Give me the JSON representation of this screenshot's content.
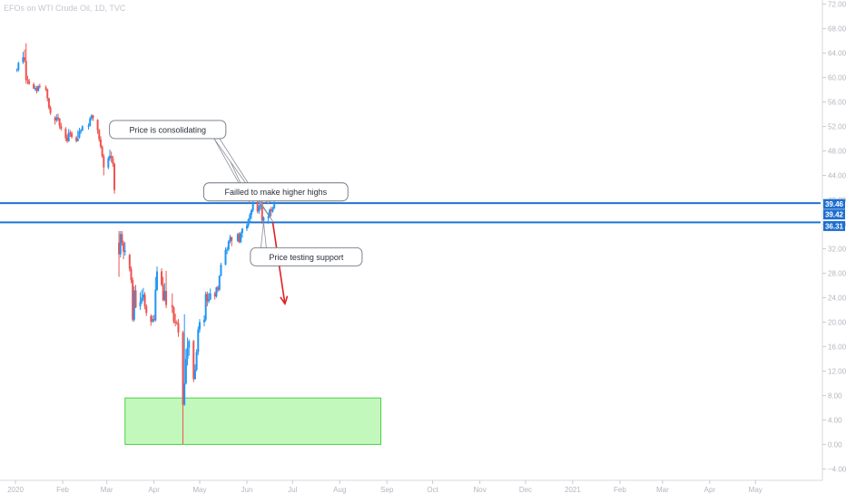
{
  "chart_data": {
    "type": "candlestick",
    "title": "EFOs on WTI Crude Oil, 1D, TVC",
    "y_axis": {
      "ticks": [
        "72.00",
        "68.00",
        "64.00",
        "60.00",
        "56.00",
        "52.00",
        "48.00",
        "44.00",
        "40.00",
        "36.00",
        "32.00",
        "28.00",
        "24.00",
        "20.00",
        "16.00",
        "12.00",
        "8.00",
        "4.00",
        "0.00",
        "-4.00"
      ],
      "range": [
        -5,
        73
      ]
    },
    "x_axis": {
      "labels": [
        {
          "label": "2020",
          "date": "2020-01-01"
        },
        {
          "label": "Feb",
          "date": "2020-02-01"
        },
        {
          "label": "Mar",
          "date": "2020-03-01"
        },
        {
          "label": "Apr",
          "date": "2020-04-01"
        },
        {
          "label": "May",
          "date": "2020-05-01"
        },
        {
          "label": "Jun",
          "date": "2020-06-01"
        },
        {
          "label": "Jul",
          "date": "2020-07-01"
        },
        {
          "label": "Aug",
          "date": "2020-08-01"
        },
        {
          "label": "Sep",
          "date": "2020-09-01"
        },
        {
          "label": "Oct",
          "date": "2020-10-01"
        },
        {
          "label": "Nov",
          "date": "2020-11-01"
        },
        {
          "label": "Dec",
          "date": "2020-12-01"
        },
        {
          "label": "2021",
          "date": "2021-01-01"
        },
        {
          "label": "Feb",
          "date": "2021-02-01"
        },
        {
          "label": "Mar",
          "date": "2021-03-01"
        },
        {
          "label": "Apr",
          "date": "2021-04-01"
        },
        {
          "label": "May",
          "date": "2021-05-01"
        }
      ]
    },
    "price_labels": [
      {
        "value": 39.46,
        "text": "39.46"
      },
      {
        "value": 39.42,
        "text": "39.42"
      },
      {
        "value": 36.31,
        "text": "36.31"
      }
    ],
    "horizontal_lines": [
      39.46,
      36.31
    ],
    "zone": {
      "from_date": "2020-03-13",
      "to_date": "2020-08-28",
      "top": 7.6,
      "bottom": 0.0
    },
    "arrow": {
      "from_date": "2020-06-18",
      "from_value": 36.3,
      "to_date": "2020-06-26",
      "to_value": 23.0
    },
    "annotations": [
      {
        "text": "Price is consolidating",
        "box_date": "2020-04-10",
        "box_value": 51.5,
        "targets": [
          {
            "date": "2020-06-03",
            "value": 39.5
          },
          {
            "date": "2020-06-18",
            "value": 36.5
          }
        ]
      },
      {
        "text": "Failled to make higher highs",
        "box_date": "2020-06-20",
        "box_value": 41.3,
        "targets": [
          {
            "date": "2020-06-15",
            "value": 39.5
          }
        ]
      },
      {
        "text": "Price testing support",
        "box_date": "2020-07-10",
        "box_value": 30.7,
        "targets": [
          {
            "date": "2020-06-12",
            "value": 36.3
          }
        ]
      }
    ],
    "colors": {
      "up": "#2196f3",
      "down": "#ef5350",
      "levels": "#1e74d4",
      "zone_fill": "#b8f7b0",
      "zone_stroke": "#47d147",
      "arrow": "#e01f1f"
    },
    "candles": [
      [
        "2020-01-02",
        61.2,
        61.5,
        60.9,
        61.3
      ],
      [
        "2020-01-03",
        61.3,
        62.6,
        61.0,
        62.4
      ],
      [
        "2020-01-06",
        62.5,
        64.2,
        62.2,
        63.3
      ],
      [
        "2020-01-07",
        63.3,
        64.6,
        62.5,
        62.8
      ],
      [
        "2020-01-08",
        62.7,
        65.6,
        59.0,
        59.6
      ],
      [
        "2020-01-09",
        59.6,
        60.3,
        58.9,
        59.5
      ],
      [
        "2020-01-10",
        59.4,
        59.8,
        58.8,
        59.0
      ],
      [
        "2020-01-13",
        58.9,
        59.2,
        58.1,
        58.2
      ],
      [
        "2020-01-14",
        58.3,
        58.7,
        57.8,
        58.3
      ],
      [
        "2020-01-15",
        58.3,
        58.6,
        57.4,
        57.8
      ],
      [
        "2020-01-16",
        57.8,
        58.8,
        57.7,
        58.6
      ],
      [
        "2020-01-17",
        58.6,
        59.0,
        58.2,
        58.5
      ],
      [
        "2020-01-21",
        58.4,
        58.7,
        57.8,
        58.1
      ],
      [
        "2020-01-22",
        58.1,
        58.2,
        56.1,
        56.6
      ],
      [
        "2020-01-23",
        56.6,
        56.7,
        54.8,
        55.1
      ],
      [
        "2020-01-24",
        55.1,
        55.4,
        53.9,
        54.2
      ],
      [
        "2020-01-27",
        53.4,
        53.7,
        52.3,
        53.0
      ],
      [
        "2020-01-28",
        53.0,
        54.0,
        52.7,
        53.5
      ],
      [
        "2020-01-29",
        53.5,
        54.1,
        52.9,
        53.3
      ],
      [
        "2020-01-30",
        53.3,
        53.4,
        51.6,
        52.1
      ],
      [
        "2020-01-31",
        52.1,
        52.6,
        51.3,
        51.6
      ],
      [
        "2020-02-03",
        51.6,
        51.9,
        49.6,
        50.1
      ],
      [
        "2020-02-04",
        50.2,
        50.7,
        49.3,
        49.6
      ],
      [
        "2020-02-05",
        49.6,
        51.6,
        49.5,
        51.0
      ],
      [
        "2020-02-06",
        51.0,
        51.4,
        50.3,
        50.9
      ],
      [
        "2020-02-07",
        50.9,
        51.2,
        50.0,
        50.3
      ],
      [
        "2020-02-10",
        50.2,
        50.5,
        49.4,
        49.6
      ],
      [
        "2020-02-11",
        49.6,
        51.4,
        49.6,
        50.0
      ],
      [
        "2020-02-12",
        50.2,
        51.8,
        50.0,
        51.2
      ],
      [
        "2020-02-13",
        51.2,
        51.6,
        50.8,
        51.4
      ],
      [
        "2020-02-14",
        51.4,
        52.2,
        51.2,
        52.0
      ],
      [
        "2020-02-18",
        52.0,
        52.5,
        51.5,
        52.1
      ],
      [
        "2020-02-19",
        52.1,
        53.6,
        52.0,
        53.3
      ],
      [
        "2020-02-20",
        53.3,
        54.0,
        53.0,
        53.8
      ],
      [
        "2020-02-21",
        53.8,
        53.9,
        52.9,
        53.4
      ],
      [
        "2020-02-24",
        53.1,
        53.2,
        50.8,
        51.4
      ],
      [
        "2020-02-25",
        51.4,
        51.6,
        49.5,
        49.9
      ],
      [
        "2020-02-26",
        49.9,
        50.4,
        48.4,
        48.7
      ],
      [
        "2020-02-27",
        48.7,
        48.9,
        46.9,
        47.1
      ],
      [
        "2020-02-28",
        47.1,
        47.5,
        44.0,
        45.3
      ],
      [
        "2020-03-02",
        45.3,
        47.1,
        45.0,
        46.8
      ],
      [
        "2020-03-03",
        46.8,
        48.2,
        46.4,
        47.2
      ],
      [
        "2020-03-04",
        47.2,
        47.9,
        46.1,
        46.8
      ],
      [
        "2020-03-05",
        46.8,
        47.2,
        45.4,
        45.9
      ],
      [
        "2020-03-06",
        45.9,
        46.1,
        41.0,
        41.6
      ],
      [
        "2020-03-09",
        33.0,
        34.9,
        27.4,
        31.1
      ],
      [
        "2020-03-10",
        31.1,
        34.9,
        30.6,
        34.4
      ],
      [
        "2020-03-11",
        34.4,
        34.9,
        32.5,
        32.9
      ],
      [
        "2020-03-12",
        32.9,
        33.3,
        30.3,
        31.5
      ],
      [
        "2020-03-13",
        31.5,
        33.1,
        30.9,
        31.7
      ],
      [
        "2020-03-16",
        31.0,
        31.2,
        28.3,
        28.7
      ],
      [
        "2020-03-17",
        28.7,
        29.1,
        26.4,
        26.9
      ],
      [
        "2020-03-18",
        26.9,
        27.3,
        20.1,
        20.4
      ],
      [
        "2020-03-19",
        20.4,
        25.9,
        20.1,
        25.2
      ],
      [
        "2020-03-20",
        25.2,
        26.1,
        22.3,
        22.4
      ],
      [
        "2020-03-23",
        22.6,
        24.9,
        22.0,
        23.3
      ],
      [
        "2020-03-24",
        23.3,
        25.3,
        23.0,
        24.0
      ],
      [
        "2020-03-25",
        24.0,
        25.6,
        23.5,
        24.5
      ],
      [
        "2020-03-26",
        24.5,
        24.9,
        22.1,
        22.6
      ],
      [
        "2020-03-27",
        22.6,
        22.9,
        21.0,
        21.5
      ],
      [
        "2020-03-30",
        21.0,
        21.3,
        19.4,
        20.1
      ],
      [
        "2020-03-31",
        20.1,
        21.1,
        19.9,
        20.5
      ],
      [
        "2020-04-01",
        20.5,
        21.2,
        20.0,
        20.3
      ],
      [
        "2020-04-02",
        20.3,
        27.4,
        20.1,
        25.3
      ],
      [
        "2020-04-03",
        25.3,
        29.1,
        25.1,
        28.3
      ],
      [
        "2020-04-06",
        28.3,
        28.8,
        25.9,
        26.1
      ],
      [
        "2020-04-07",
        26.1,
        27.4,
        23.4,
        23.6
      ],
      [
        "2020-04-08",
        23.6,
        26.4,
        23.4,
        25.1
      ],
      [
        "2020-04-09",
        25.1,
        28.4,
        22.3,
        22.8
      ],
      [
        "2020-04-13",
        22.8,
        24.7,
        21.5,
        22.4
      ],
      [
        "2020-04-14",
        22.4,
        22.6,
        19.8,
        20.1
      ],
      [
        "2020-04-15",
        20.1,
        21.4,
        19.3,
        19.9
      ],
      [
        "2020-04-16",
        19.9,
        20.3,
        19.6,
        19.8
      ],
      [
        "2020-04-17",
        19.8,
        20.5,
        17.6,
        18.3
      ],
      [
        "2020-04-20",
        18.3,
        18.6,
        0.0,
        6.5
      ],
      [
        "2020-04-21",
        6.5,
        21.3,
        6.3,
        10.0
      ],
      [
        "2020-04-22",
        10.0,
        15.6,
        9.8,
        14.0
      ],
      [
        "2020-04-23",
        14.0,
        17.5,
        12.9,
        15.8
      ],
      [
        "2020-04-24",
        15.8,
        17.2,
        14.5,
        16.9
      ],
      [
        "2020-04-27",
        16.9,
        17.1,
        10.2,
        10.7
      ],
      [
        "2020-04-28",
        10.7,
        13.1,
        10.6,
        12.2
      ],
      [
        "2020-04-29",
        12.2,
        15.6,
        12.0,
        15.1
      ],
      [
        "2020-04-30",
        15.1,
        19.3,
        14.6,
        18.8
      ],
      [
        "2020-05-01",
        18.8,
        20.5,
        18.3,
        20.0
      ],
      [
        "2020-05-04",
        20.0,
        21.1,
        19.3,
        20.4
      ],
      [
        "2020-05-05",
        20.4,
        25.0,
        20.1,
        24.6
      ],
      [
        "2020-05-06",
        24.6,
        25.0,
        22.6,
        23.4
      ],
      [
        "2020-05-07",
        23.4,
        24.8,
        23.1,
        23.7
      ],
      [
        "2020-05-08",
        23.7,
        25.5,
        23.6,
        24.7
      ],
      [
        "2020-05-11",
        24.7,
        25.0,
        23.7,
        24.2
      ],
      [
        "2020-05-12",
        24.2,
        25.8,
        24.0,
        25.7
      ],
      [
        "2020-05-13",
        25.7,
        26.0,
        24.9,
        25.3
      ],
      [
        "2020-05-14",
        25.3,
        27.7,
        25.1,
        27.6
      ],
      [
        "2020-05-15",
        27.6,
        29.7,
        27.5,
        29.4
      ],
      [
        "2020-05-18",
        29.4,
        32.2,
        29.3,
        31.8
      ],
      [
        "2020-05-19",
        31.8,
        32.3,
        31.1,
        31.9
      ],
      [
        "2020-05-20",
        31.9,
        33.4,
        31.6,
        33.2
      ],
      [
        "2020-05-21",
        33.2,
        34.3,
        32.9,
        33.9
      ],
      [
        "2020-05-22",
        33.9,
        34.0,
        32.4,
        33.3
      ],
      [
        "2020-05-26",
        33.3,
        34.6,
        33.1,
        34.4
      ],
      [
        "2020-05-27",
        34.4,
        34.7,
        32.9,
        33.1
      ],
      [
        "2020-05-28",
        33.1,
        34.8,
        32.9,
        34.6
      ],
      [
        "2020-05-29",
        34.6,
        35.4,
        33.8,
        35.3
      ],
      [
        "2020-06-01",
        35.3,
        36.1,
        34.9,
        35.8
      ],
      [
        "2020-06-02",
        35.8,
        37.0,
        35.4,
        36.8
      ],
      [
        "2020-06-03",
        36.8,
        37.9,
        36.4,
        37.6
      ],
      [
        "2020-06-04",
        37.6,
        38.5,
        36.9,
        38.3
      ],
      [
        "2020-06-05",
        38.3,
        39.9,
        38.0,
        39.5
      ],
      [
        "2020-06-08",
        39.5,
        40.4,
        37.8,
        38.1
      ],
      [
        "2020-06-09",
        38.1,
        39.2,
        37.7,
        38.9
      ],
      [
        "2020-06-10",
        38.9,
        39.7,
        38.4,
        39.6
      ],
      [
        "2020-06-11",
        39.6,
        39.8,
        36.1,
        36.6
      ],
      [
        "2020-06-12",
        36.6,
        37.3,
        35.6,
        37.1
      ],
      [
        "2020-06-15",
        37.1,
        37.9,
        36.1,
        37.2
      ],
      [
        "2020-06-16",
        37.2,
        38.6,
        37.0,
        38.4
      ],
      [
        "2020-06-17",
        38.4,
        38.9,
        37.3,
        38.1
      ],
      [
        "2020-06-18",
        38.1,
        38.9,
        37.9,
        38.6
      ],
      [
        "2020-06-19",
        38.6,
        40.4,
        38.5,
        39.5
      ]
    ]
  }
}
